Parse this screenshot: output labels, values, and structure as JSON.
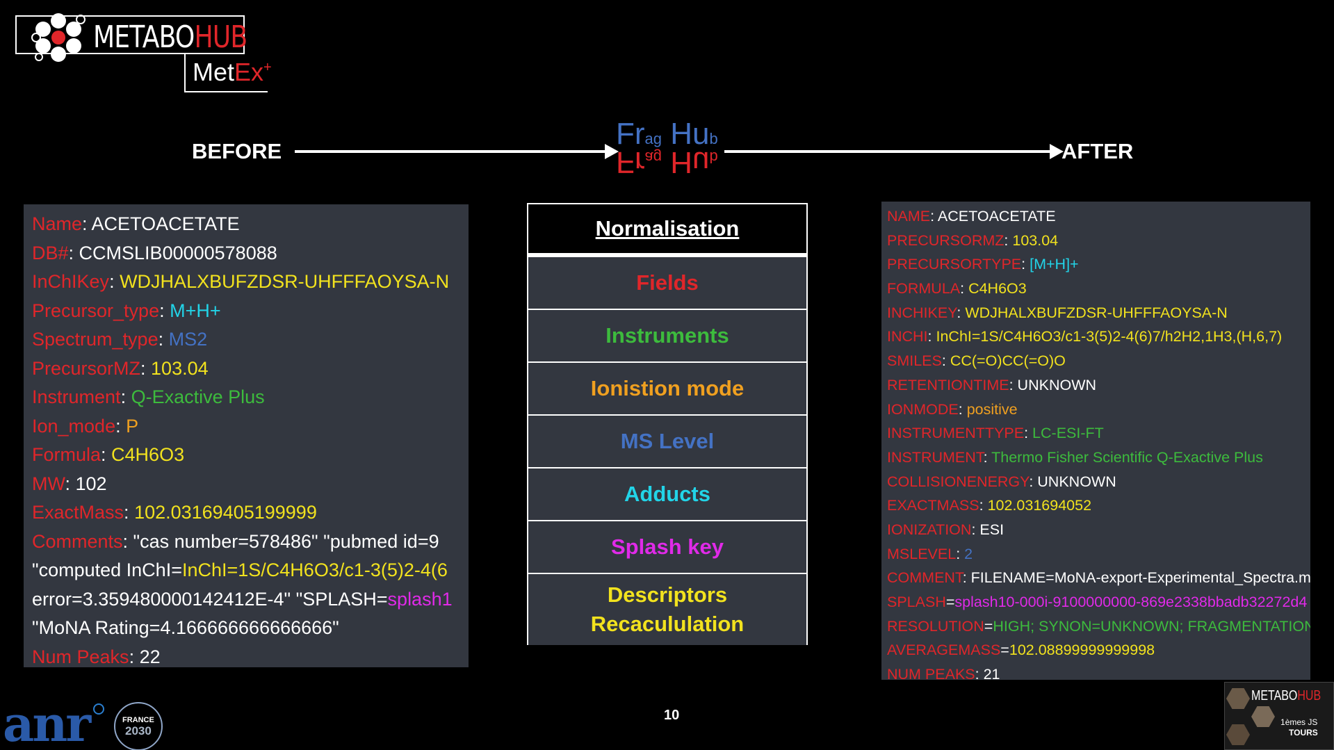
{
  "logo": {
    "main_white": "METABO",
    "main_red": "HUB",
    "sub_white": "Met",
    "sub_red": "Ex",
    "sub_sup": "+"
  },
  "flow": {
    "before": "BEFORE",
    "after": "AFTER",
    "center_logo_top": "Fr",
    "center_logo_ag": "ag",
    "center_logo_hu": "Hu",
    "center_logo_b": "b"
  },
  "before_panel": [
    {
      "key": "Name",
      "sep": ": ",
      "val": "ACETOACETATE",
      "vc": "w"
    },
    {
      "key": "DB#",
      "sep": ": ",
      "val": "CCMSLIB00000578088",
      "vc": "w"
    },
    {
      "key": "InChIKey",
      "sep": ": ",
      "val": "WDJHALXBUFZDSR-UHFFFAOYSA-N",
      "vc": "y"
    },
    {
      "key": "Precursor_type",
      "sep": ": ",
      "val": "M+H+",
      "vc": "c"
    },
    {
      "key": "Spectrum_type",
      "sep": ": ",
      "val": "MS2",
      "vc": "b"
    },
    {
      "key": "PrecursorMZ",
      "sep": ": ",
      "val": "103.04",
      "vc": "y"
    },
    {
      "key": "Instrument",
      "sep": ": ",
      "val": "Q-Exactive Plus",
      "vc": "g"
    },
    {
      "key": "Ion_mode",
      "sep": ": ",
      "val": "P",
      "vc": "o"
    },
    {
      "key": "Formula",
      "sep": ": ",
      "val": "C4H6O3",
      "vc": "y"
    },
    {
      "key": "MW",
      "sep": ": ",
      "val": "102",
      "vc": "w"
    },
    {
      "key": "ExactMass",
      "sep": ": ",
      "val": "102.03169405199999",
      "vc": "y"
    },
    {
      "key": "Comments",
      "sep": ": ",
      "val": "\"cas number=578486\" \"pubmed id=9",
      "vc": "w"
    },
    {
      "key": "",
      "sep": "\"computed InChI=",
      "val": "InChI=1S/C4H6O3/c1-3(5)2-4(6",
      "vc": "y"
    },
    {
      "key": "",
      "sep": "error=3.359480000142412E-4\" \"SPLASH=",
      "val": "splash1",
      "vc": "m"
    },
    {
      "key": "",
      "sep": "\"MoNA Rating=4.166666666666666\"",
      "val": "",
      "vc": "w"
    },
    {
      "key": "Num Peaks",
      "sep": ": ",
      "val": "22",
      "vc": "w"
    }
  ],
  "table": {
    "header": "Normalisation",
    "rows": [
      {
        "label": "Fields",
        "color": "#e0262a"
      },
      {
        "label": "Instruments",
        "color": "#3dbb3d"
      },
      {
        "label": "Ionistion mode",
        "color": "#f0a020"
      },
      {
        "label": "MS Level",
        "color": "#4472c4"
      },
      {
        "label": "Adducts",
        "color": "#22d4e8"
      },
      {
        "label": "Splash key",
        "color": "#e02ae8"
      }
    ],
    "last_line1": "Descriptors",
    "last_line2": "Recacululation",
    "last_color": "#f2e21e"
  },
  "after_panel": [
    {
      "key": "NAME",
      "sep": ": ",
      "val": "ACETOACETATE",
      "vc": "w"
    },
    {
      "key": "PRECURSORMZ",
      "sep": ": ",
      "val": "103.04",
      "vc": "y"
    },
    {
      "key": "PRECURSORTYPE",
      "sep": ": ",
      "val": "[M+H]+",
      "vc": "c"
    },
    {
      "key": "FORMULA",
      "sep": ": ",
      "val": "C4H6O3",
      "vc": "y"
    },
    {
      "key": "INCHIKEY",
      "sep": ": ",
      "val": "WDJHALXBUFZDSR-UHFFFAOYSA-N",
      "vc": "y"
    },
    {
      "key": "INCHI",
      "sep": ": ",
      "val": "InChI=1S/C4H6O3/c1-3(5)2-4(6)7/h2H2,1H3,(H,6,7)",
      "vc": "y"
    },
    {
      "key": "SMILES",
      "sep": ": ",
      "val": "CC(=O)CC(=O)O",
      "vc": "y"
    },
    {
      "key": "RETENTIONTIME",
      "sep": ": ",
      "val": "UNKNOWN",
      "vc": "w"
    },
    {
      "key": "IONMODE",
      "sep": ": ",
      "val": "positive",
      "vc": "o"
    },
    {
      "key": "INSTRUMENTTYPE",
      "sep": ": ",
      "val": "LC-ESI-FT",
      "vc": "g"
    },
    {
      "key": "INSTRUMENT",
      "sep": ": ",
      "val": "Thermo Fisher Scientific Q-Exactive Plus",
      "vc": "g"
    },
    {
      "key": "COLLISIONENERGY",
      "sep": ": ",
      "val": "UNKNOWN",
      "vc": "w"
    },
    {
      "key": "EXACTMASS",
      "sep": ": ",
      "val": "102.031694052",
      "vc": "y"
    },
    {
      "key": "IONIZATION",
      "sep": ": ",
      "val": "ESI",
      "vc": "w"
    },
    {
      "key": "MSLEVEL",
      "sep": ": ",
      "val": "2",
      "vc": "b"
    },
    {
      "key": "COMMENT",
      "sep": ": ",
      "val": "FILENAME=MoNA-export-Experimental_Spectra.m",
      "vc": "w"
    },
    {
      "key": "SPLASH",
      "sep": "=",
      "val": "splash10-000i-9100000000-869e2338bbadb32272d4",
      "vc": "m"
    },
    {
      "key": "RESOLUTION",
      "sep": "=",
      "val": "HIGH; SYNON=UNKNOWN; FRAGMENTATIONM",
      "vc": "g"
    },
    {
      "key": "AVERAGEMASS",
      "sep": "=",
      "val": "102.08899999999998",
      "vc": "y"
    },
    {
      "key": "NUM PEAKS",
      "sep": ": ",
      "val": "21",
      "vc": "w"
    }
  ],
  "footer": {
    "anr": "anr",
    "france_top": "FRANCE",
    "france_year": "2030",
    "page_number": "10",
    "badge_white": "METABO",
    "badge_red": "HUB",
    "badge_line1": "1",
    "badge_line1_suffix": "èmes JS",
    "badge_line2": "TOURS"
  }
}
